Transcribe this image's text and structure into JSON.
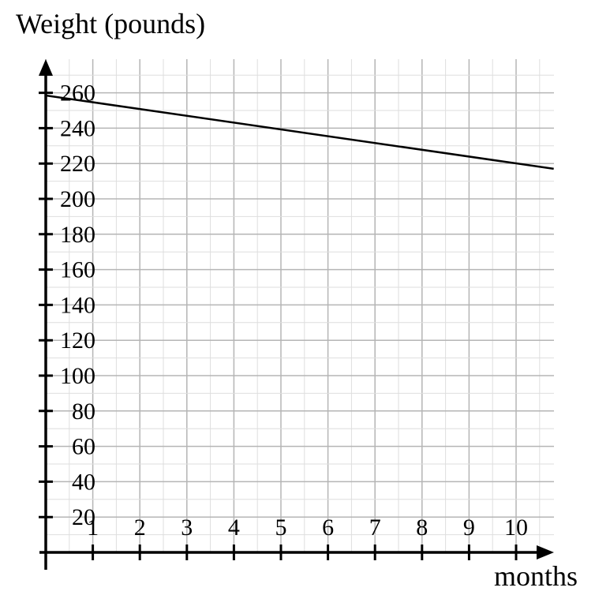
{
  "chart_data": {
    "type": "line",
    "ylabel": "Weight (pounds)",
    "xlabel": "months",
    "xlim": [
      0,
      10.8
    ],
    "ylim": [
      0,
      280
    ],
    "x_ticks": [
      "1",
      "2",
      "3",
      "4",
      "5",
      "6",
      "7",
      "8",
      "9",
      "10"
    ],
    "y_ticks": [
      "20",
      "40",
      "60",
      "80",
      "100",
      "120",
      "140",
      "160",
      "180",
      "200",
      "220",
      "240",
      "260"
    ],
    "grid": true,
    "series": [
      {
        "x": [
          0,
          10.8
        ],
        "y": [
          258.5,
          217
        ]
      }
    ]
  }
}
